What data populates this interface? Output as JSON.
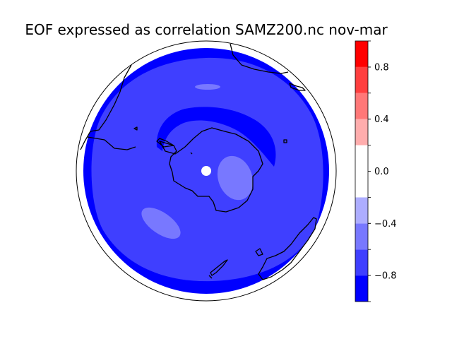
{
  "title": "EOF expressed as correlation SAMZ200.nc nov-mar",
  "colorbar": {
    "levels": [
      -1.0,
      -0.8,
      -0.6,
      -0.4,
      -0.2,
      0.2,
      0.4,
      0.6,
      0.8,
      1.0
    ],
    "colors": [
      "#0000ff",
      "#3f3fff",
      "#7878ff",
      "#adadff",
      "#ffffff",
      "#ffadad",
      "#ff7878",
      "#ff3f3f",
      "#ff0000"
    ],
    "ticks": [
      {
        "value": -0.8,
        "label": "−0.8"
      },
      {
        "value": -0.4,
        "label": "−0.4"
      },
      {
        "value": 0.0,
        "label": "0.0"
      },
      {
        "value": 0.4,
        "label": "0.4"
      },
      {
        "value": 0.8,
        "label": "0.8"
      }
    ]
  },
  "map": {
    "projection": "south-polar-stereographic",
    "field_colors": {
      "outer_ring": "#0000ff",
      "main": "#3f3fff",
      "weak": "#7878ff",
      "missing": "#ffffff"
    },
    "coastline_color": "#000000"
  }
}
